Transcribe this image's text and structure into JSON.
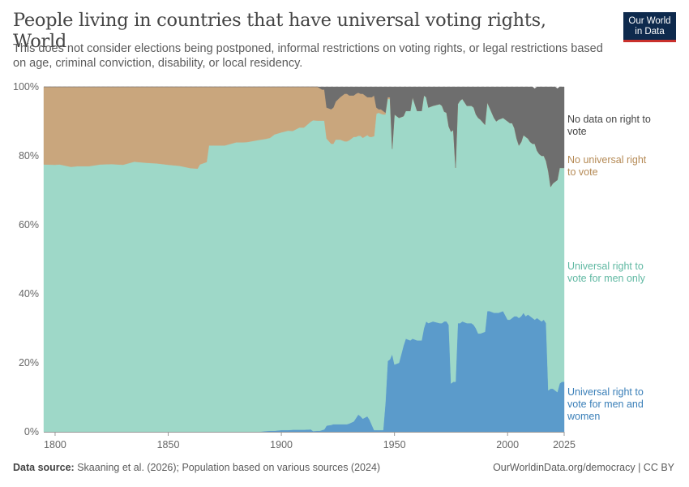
{
  "header": {
    "title": "People living in countries that have universal voting rights, World",
    "subtitle": "This does not consider elections being postponed, informal restrictions on voting rights, or legal restrictions based on age, criminal conviction, disability, or local residency.",
    "logo_line1": "Our World",
    "logo_line2": "in Data"
  },
  "footer": {
    "source_label": "Data source:",
    "source_text": "Skaaning et al. (2026); Population based on various sources (2024)",
    "right_text": "OurWorldinData.org/democracy | CC BY"
  },
  "colors": {
    "men_and_women": "#5b9bcb",
    "men_only": "#9ed8c8",
    "no_right": "#c9a67d",
    "no_data": "#6e6e6e",
    "men_and_women_label": "#3a7fb8",
    "men_only_label": "#5fb8a2",
    "no_right_label": "#b58a55",
    "no_data_label": "#444444"
  },
  "chart_data": {
    "type": "area",
    "stacked": true,
    "relative": true,
    "xlim": [
      1795,
      2025
    ],
    "ylim": [
      0,
      100
    ],
    "x_ticks": [
      1800,
      1850,
      1900,
      1950,
      2000,
      2025
    ],
    "y_ticks": [
      "0%",
      "20%",
      "40%",
      "60%",
      "80%",
      "100%"
    ],
    "grid": true,
    "legend_position": "right-inline",
    "x": [
      1795,
      1800,
      1802,
      1807,
      1810,
      1815,
      1820,
      1825,
      1830,
      1835,
      1840,
      1845,
      1850,
      1855,
      1860,
      1863,
      1864,
      1867,
      1868,
      1870,
      1873,
      1875,
      1880,
      1883,
      1885,
      1890,
      1893,
      1895,
      1897,
      1900,
      1903,
      1905,
      1908,
      1910,
      1913,
      1914,
      1916,
      1917,
      1918,
      1919,
      1920,
      1922,
      1923,
      1924,
      1926,
      1928,
      1929,
      1930,
      1932,
      1933,
      1934,
      1935,
      1936,
      1938,
      1939,
      1940,
      1941,
      1942,
      1943,
      1944,
      1945,
      1946,
      1947,
      1948,
      1949,
      1950,
      1952,
      1954,
      1955,
      1957,
      1958,
      1960,
      1962,
      1963,
      1964,
      1965,
      1967,
      1970,
      1971,
      1972,
      1973,
      1974,
      1975,
      1976,
      1977,
      1978,
      1979,
      1980,
      1982,
      1984,
      1985,
      1986,
      1987,
      1988,
      1990,
      1991,
      1992,
      1994,
      1995,
      1996,
      1998,
      2000,
      2001,
      2002,
      2003,
      2004,
      2005,
      2006,
      2007,
      2008,
      2009,
      2010,
      2011,
      2012,
      2013,
      2014,
      2015,
      2016,
      2017,
      2018,
      2019,
      2020,
      2021,
      2022,
      2023,
      2024,
      2025
    ],
    "series": [
      {
        "name": "Universal right to vote for men and women",
        "values": [
          0,
          0,
          0,
          0,
          0,
          0,
          0,
          0,
          0,
          0,
          0,
          0,
          0,
          0,
          0,
          0,
          0,
          0,
          0,
          0,
          0,
          0,
          0,
          0,
          0,
          0,
          0.2,
          0.3,
          0.3,
          0.5,
          0.5,
          0.6,
          0.6,
          0.6,
          0.7,
          0.2,
          0.3,
          0.3,
          0.5,
          0.7,
          1.8,
          2.0,
          2.2,
          2.2,
          2.2,
          2.2,
          2.2,
          2.4,
          3.0,
          4.0,
          5.0,
          4.5,
          3.8,
          4.5,
          3.5,
          2.0,
          0.5,
          0.5,
          0.5,
          0.5,
          0.5,
          8.5,
          20.5,
          21.0,
          22.5,
          19.5,
          20.0,
          25.0,
          27.0,
          26.5,
          27.0,
          26.5,
          26.5,
          30.0,
          32.0,
          31.5,
          32.0,
          31.5,
          31.5,
          32.0,
          32.0,
          31.0,
          14.0,
          14.5,
          14.5,
          31.5,
          31.5,
          32.0,
          31.5,
          31.5,
          31.0,
          30.0,
          28.5,
          28.5,
          29.0,
          35.0,
          35.0,
          34.5,
          34.5,
          34.5,
          35.0,
          32.5,
          32.5,
          33.0,
          33.5,
          33.5,
          33.0,
          33.5,
          34.5,
          33.5,
          34.0,
          33.5,
          33.0,
          32.5,
          33.0,
          32.5,
          32.0,
          32.5,
          31.5,
          12.0,
          12.5,
          12.5,
          12.0,
          11.5,
          14.0,
          14.5,
          14.5
        ]
      },
      {
        "name": "Universal right to vote for men only",
        "values": [
          77.5,
          77.4,
          77.5,
          76.8,
          77.0,
          77.0,
          77.5,
          77.6,
          77.4,
          78.3,
          78.0,
          77.8,
          77.4,
          77.1,
          76.4,
          76.3,
          77.5,
          78.2,
          83.0,
          83.0,
          83.0,
          83.0,
          83.9,
          83.9,
          84.0,
          84.6,
          84.7,
          84.9,
          85.9,
          86.3,
          86.8,
          86.6,
          87.6,
          87.6,
          89.2,
          90.1,
          89.9,
          89.9,
          89.7,
          89.5,
          83.2,
          81.5,
          81.3,
          82.5,
          82.5,
          82.0,
          82.0,
          82.1,
          82.5,
          81.5,
          80.8,
          81.3,
          81.4,
          81.5,
          82.0,
          83.5,
          85.2,
          91.7,
          92.0,
          91.7,
          91.5,
          83.5,
          76.0,
          75.5,
          59.5,
          72.5,
          71.0,
          66.5,
          66.0,
          66.5,
          70.0,
          66.5,
          66.5,
          67.5,
          65.0,
          62.5,
          62.5,
          63.5,
          63.0,
          60.8,
          60.5,
          57.5,
          73.0,
          73.0,
          62.0,
          63.5,
          64.5,
          64.5,
          63.0,
          63.0,
          63.0,
          62.0,
          62.5,
          62.0,
          60.0,
          60.5,
          59.0,
          56.5,
          55.5,
          56.0,
          56.0,
          57.5,
          57.0,
          56.5,
          54.5,
          51.5,
          50.0,
          50.5,
          51.5,
          52.0,
          51.0,
          50.5,
          50.5,
          51.0,
          48.5,
          48.0,
          48.0,
          47.5,
          47.0,
          63.5,
          58.5,
          59.5,
          60.5,
          61.5,
          62.5,
          62.0,
          62.0
        ]
      },
      {
        "name": "No universal right to vote",
        "values": [
          22.5,
          22.6,
          22.5,
          23.2,
          23.0,
          23.0,
          22.5,
          22.4,
          22.6,
          21.7,
          22.0,
          22.2,
          22.6,
          22.9,
          23.6,
          23.7,
          22.5,
          21.8,
          17.0,
          17.0,
          17.0,
          17.0,
          16.1,
          16.1,
          16.0,
          15.4,
          15.1,
          14.8,
          13.8,
          13.2,
          12.7,
          12.8,
          11.8,
          11.8,
          10.1,
          9.7,
          9.8,
          9.4,
          9.0,
          9.0,
          9.0,
          10.0,
          10.5,
          11.0,
          12.3,
          13.8,
          13.8,
          13.0,
          12.0,
          12.5,
          12.5,
          12.2,
          12.8,
          11.0,
          11.5,
          11.5,
          11.8,
          1.8,
          1.0,
          1.3,
          1.0,
          0.5,
          0.5,
          0.5,
          0,
          0,
          0,
          0,
          0,
          0,
          0,
          0,
          0,
          0,
          0,
          0,
          0,
          0,
          0,
          0,
          0,
          0,
          0,
          0,
          0,
          0,
          0,
          0,
          0,
          0,
          0,
          0,
          0,
          0,
          0,
          0,
          0,
          0,
          0,
          0,
          0,
          0,
          0,
          0,
          0,
          0,
          0,
          0,
          0,
          0,
          0,
          0,
          0,
          0,
          0,
          0,
          0,
          0,
          0,
          0,
          0,
          0,
          0,
          0,
          0,
          0,
          0
        ]
      },
      {
        "name": "No data on right to vote",
        "values": [
          0,
          0,
          0,
          0,
          0,
          0,
          0,
          0,
          0,
          0,
          0,
          0,
          0,
          0,
          0,
          0,
          0,
          0,
          0,
          0,
          0,
          0,
          0,
          0,
          0,
          0,
          0,
          0,
          0,
          0,
          0,
          0,
          0,
          0,
          0,
          0,
          0,
          0.4,
          0.8,
          0.8,
          6.0,
          6.5,
          6.0,
          4.3,
          3.0,
          2.0,
          2.0,
          2.5,
          2.5,
          2.0,
          1.7,
          2.0,
          2.0,
          3.0,
          3.0,
          3.0,
          2.5,
          6.0,
          6.5,
          6.5,
          7.0,
          7.5,
          3.0,
          3.0,
          18.0,
          8.0,
          9.0,
          8.5,
          7.0,
          7.0,
          3.0,
          7.0,
          7.0,
          2.5,
          3.0,
          6.0,
          5.5,
          5.0,
          5.5,
          7.2,
          8.5,
          11.5,
          13.0,
          12.5,
          23.5,
          5.0,
          4.0,
          3.5,
          5.5,
          5.5,
          6.0,
          8.0,
          9.0,
          9.5,
          11.0,
          4.5,
          6.0,
          9.0,
          10.0,
          9.5,
          9.0,
          10.0,
          10.5,
          10.5,
          12.0,
          15.0,
          17.0,
          16.0,
          14.0,
          14.5,
          15.0,
          16.0,
          16.5,
          16.0,
          18.5,
          19.5,
          20.0,
          20.5,
          21.5,
          24.5,
          29.0,
          28.0,
          27.5,
          26.5,
          23.5,
          23.5,
          23.5
        ]
      }
    ],
    "labels": [
      {
        "series": 3,
        "lines": [
          "No data on right to",
          "vote"
        ]
      },
      {
        "series": 2,
        "lines": [
          "No universal right",
          "to vote"
        ]
      },
      {
        "series": 1,
        "lines": [
          "Universal right to",
          "vote for men only"
        ]
      },
      {
        "series": 0,
        "lines": [
          "Universal right to",
          "vote for men and",
          "women"
        ]
      }
    ]
  }
}
